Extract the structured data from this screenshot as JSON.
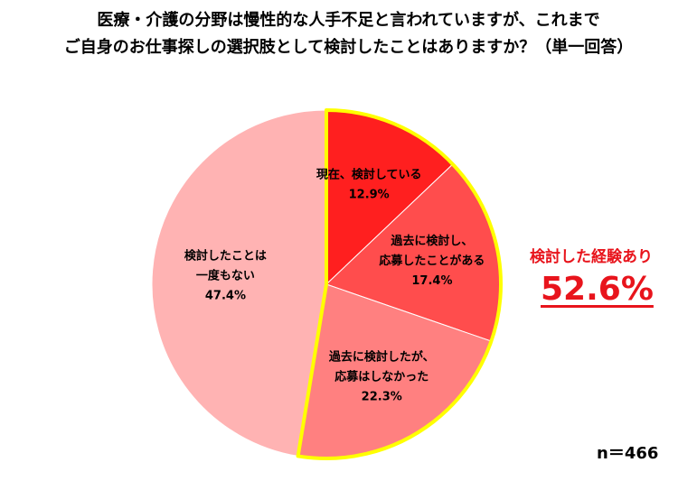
{
  "title": {
    "line1": "医療・介護の分野は慢性的な人手不足と言われていますが、これまで",
    "line2": "ご自身のお仕事探しの選択肢として検討したことはありますか？（単一回答）"
  },
  "chart_data": {
    "type": "pie",
    "slices": [
      {
        "label_lines": [
          "現在、検討している"
        ],
        "value_label": "12.9%",
        "value": 12.9,
        "color": "#ff1f1f"
      },
      {
        "label_lines": [
          "過去に検討し、",
          "応募したことがある"
        ],
        "value_label": "17.4%",
        "value": 17.4,
        "color": "#ff4d4d"
      },
      {
        "label_lines": [
          "過去に検討したが、",
          "応募はしなかった"
        ],
        "value_label": "22.3%",
        "value": 22.3,
        "color": "#ff8080"
      },
      {
        "label_lines": [
          "検討したことは",
          "一度もない"
        ],
        "value_label": "47.4%",
        "value": 47.4,
        "color": "#ffb3b3"
      }
    ],
    "highlight_color": "#ffff00",
    "annotation": {
      "label": "検討した経験あり",
      "value": "52.6%",
      "color": "#e8141c"
    },
    "sample_size": "n＝466"
  }
}
